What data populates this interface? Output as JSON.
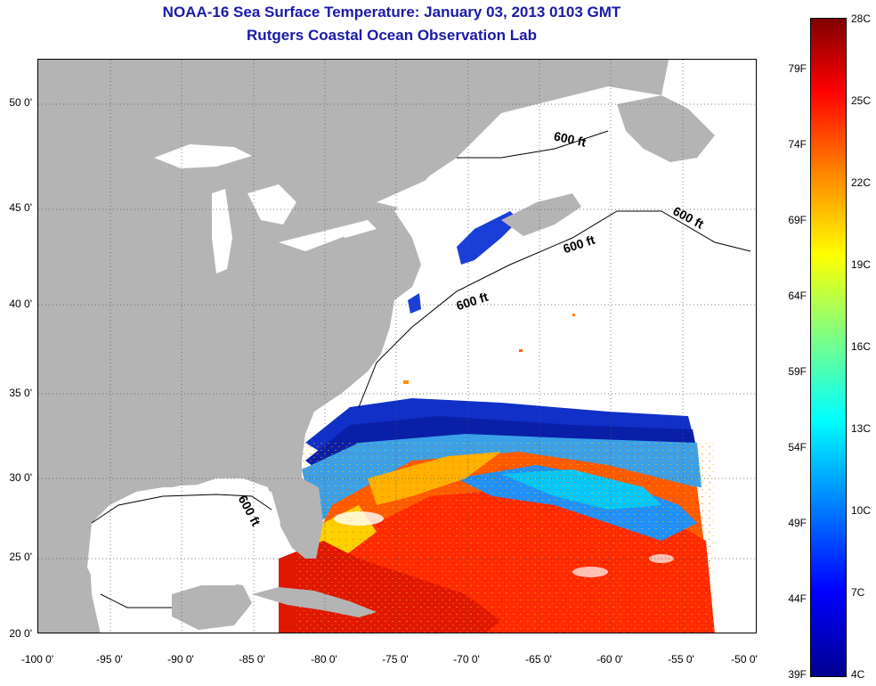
{
  "header": {
    "title_line1": "NOAA-16 Sea Surface Temperature:  January 03, 2013 0103 GMT",
    "title_line2": "Rutgers Coastal Ocean Observation Lab"
  },
  "map": {
    "lat_ticks": [
      "50 0'",
      "45 0'",
      "40 0'",
      "35 0'",
      "30 0'",
      "25 0'",
      "20 0'"
    ],
    "lon_ticks": [
      "-100 0'",
      "-95 0'",
      "-90 0'",
      "-85 0'",
      "-80 0'",
      "-75 0'",
      "-70 0'",
      "-65 0'",
      "-60 0'",
      "-55 0'",
      "-50 0'"
    ],
    "lat_range": [
      20,
      52.5
    ],
    "lon_range": [
      -100,
      -50
    ],
    "contour_labels": [
      "600 ft",
      "600 ft",
      "600 ft",
      "600 ft",
      "600 ft"
    ],
    "land_color": "#b4b4b4",
    "nodata_color": "#ffffff"
  },
  "colorbar": {
    "fahrenheit": [
      "79F",
      "74F",
      "69F",
      "64F",
      "59F",
      "54F",
      "49F",
      "44F",
      "39F"
    ],
    "celsius": [
      "28C",
      "25C",
      "22C",
      "19C",
      "16C",
      "13C",
      "10C",
      "7C",
      "4C"
    ],
    "min_c": 4,
    "max_c": 28
  }
}
